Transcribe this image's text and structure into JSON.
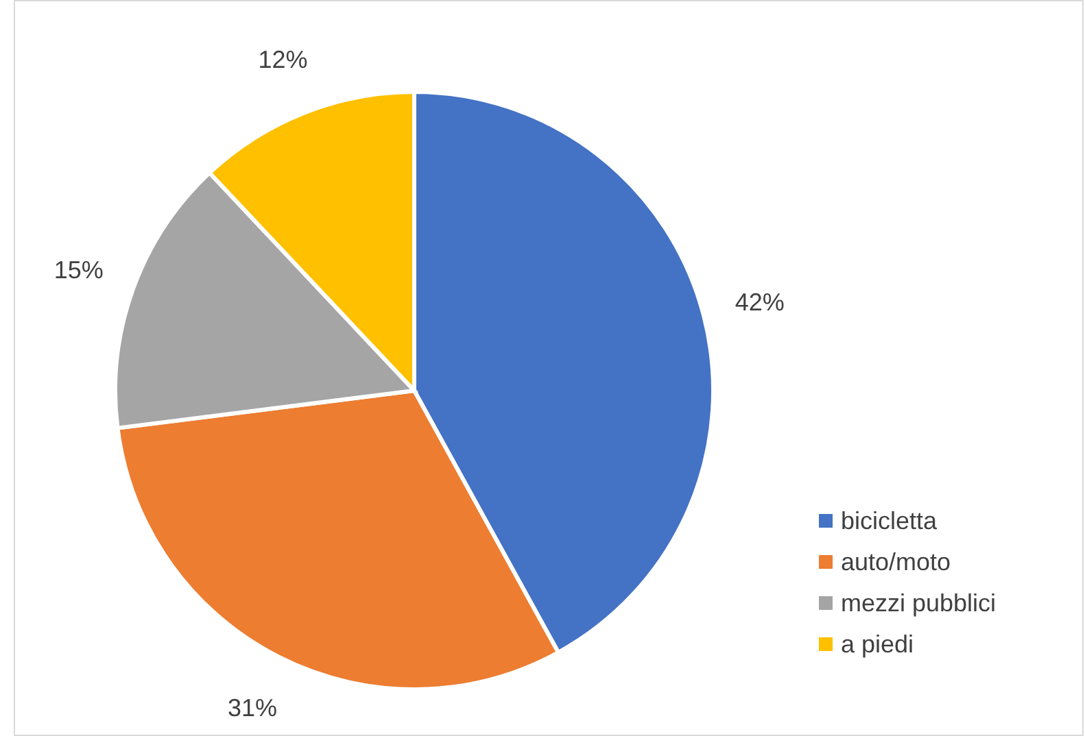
{
  "chart_data": {
    "type": "pie",
    "categories": [
      "bicicletta",
      "auto/moto",
      "mezzi pubblici",
      "a piedi"
    ],
    "values": [
      42,
      31,
      15,
      12
    ],
    "colors": [
      "#4472c4",
      "#ed7d31",
      "#a5a5a5",
      "#ffc000"
    ],
    "value_labels": [
      "42%",
      "31%",
      "15%",
      "12%"
    ],
    "legend": "bottom right"
  }
}
